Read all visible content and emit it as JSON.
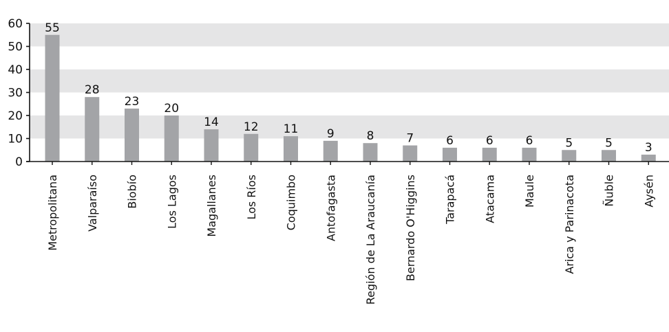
{
  "chart_data": {
    "type": "bar",
    "title": "",
    "xlabel": "",
    "ylabel": "",
    "categories": [
      "Metropolitana",
      "Valparaíso",
      "Biobío",
      "Los Lagos",
      "Magallanes",
      "Los Ríos",
      "Coquimbo",
      "Antofagasta",
      "Región de La Araucanía",
      "Bernardo O'Higgins",
      "Tarapacá",
      "Atacama",
      "Maule",
      "Arica y Parinacota",
      "Ñuble",
      "Aysén"
    ],
    "values": [
      55,
      28,
      23,
      20,
      14,
      12,
      11,
      9,
      8,
      7,
      6,
      6,
      6,
      5,
      5,
      3
    ],
    "data_labels": [
      "55",
      "28",
      "23",
      "20",
      "14",
      "12",
      "11",
      "9",
      "8",
      "7",
      "6",
      "6",
      "6",
      "5",
      "5",
      "3"
    ],
    "ylim": [
      0,
      60
    ],
    "yticks": [
      0,
      10,
      20,
      30,
      40,
      50,
      60
    ],
    "grid": "alternating horizontal bands",
    "legend": "none",
    "colors": {
      "bar": "#a3a4a7",
      "band": "#e5e5e6",
      "axis": "#111111"
    }
  }
}
